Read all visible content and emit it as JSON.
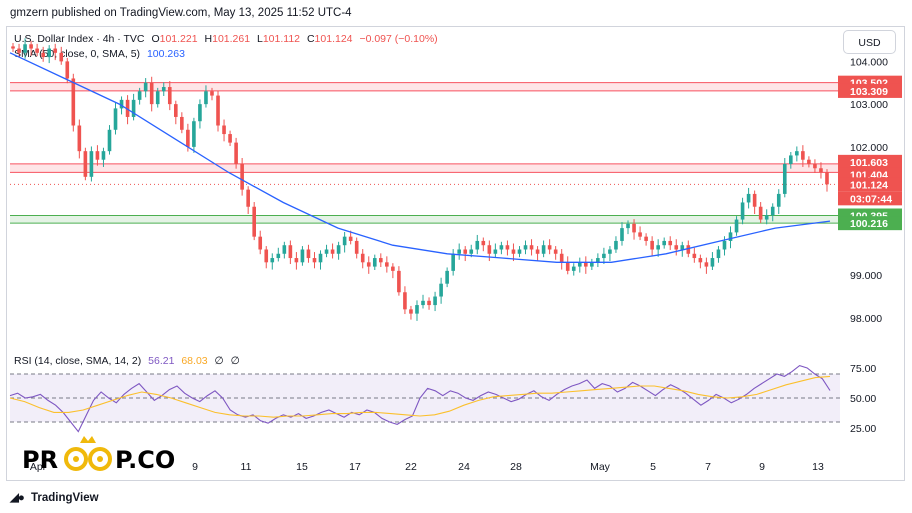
{
  "header": {
    "publisher_line": "gmzern published on TradingView.com, May 13, 2025 11:52 UTC-4"
  },
  "toolbar": {
    "currency_button": "USD"
  },
  "legend": {
    "symbol": "U.S. Dollar Index · 4h · TVC",
    "open_label": "O",
    "open": "101.221",
    "high_label": "H",
    "high": "101.261",
    "low_label": "L",
    "low": "101.112",
    "close_label": "C",
    "close": "101.124",
    "change": "−0.097 (−0.10%)",
    "sma_label": "SMA (50, close, 0, SMA, 5)",
    "sma_value": "100.263"
  },
  "rsi_legend": {
    "label": "RSI (14, close, SMA, 14, 2)",
    "rsi": "56.21",
    "rsi_sma": "68.03",
    "extra1": "∅",
    "extra2": "∅"
  },
  "watermark": {
    "text_left": "PR",
    "text_right": "P.CO"
  },
  "footer": {
    "brand": "TradingView"
  },
  "colors": {
    "up": "#26a69a",
    "down": "#ef5350",
    "sma": "#2962ff",
    "rsi": "#7e57c2",
    "rsi_sma": "#fbc02d",
    "resistance": "#f7525f",
    "support": "#4caf50",
    "rsi_band": "#7e57c2",
    "text": "#131722"
  },
  "chart_data": [
    {
      "type": "candlestick",
      "title": "U.S. Dollar Index · 4h · TVC",
      "x_ticks": [
        "Apr",
        "9",
        "11",
        "15",
        "17",
        "22",
        "24",
        "28",
        "May",
        "5",
        "7",
        "9",
        "13"
      ],
      "y_ticks": [
        "104.000",
        "103.000",
        "102.000",
        "99.000",
        "98.000"
      ],
      "ylim": [
        97.6,
        104.5
      ],
      "price_labels": [
        {
          "value": "103.502",
          "kind": "resistance"
        },
        {
          "value": "103.309",
          "kind": "resistance"
        },
        {
          "value": "101.603",
          "kind": "resistance"
        },
        {
          "value": "101.404",
          "kind": "resistance"
        },
        {
          "value": "101.124",
          "kind": "last"
        },
        {
          "value": "03:07:44",
          "kind": "countdown"
        },
        {
          "value": "100.395",
          "kind": "support"
        },
        {
          "value": "100.216",
          "kind": "support"
        }
      ],
      "zones": [
        {
          "name": "resistance-upper",
          "from": 103.309,
          "to": 103.502,
          "color": "#f7525f"
        },
        {
          "name": "resistance-lower",
          "from": 101.404,
          "to": 101.603,
          "color": "#f7525f"
        },
        {
          "name": "support",
          "from": 100.216,
          "to": 100.395,
          "color": "#4caf50"
        }
      ],
      "last_price": 101.124,
      "close_series": [
        104.3,
        104.2,
        104.4,
        104.3,
        104.2,
        104.1,
        104.3,
        104.2,
        104.0,
        103.6,
        102.5,
        101.9,
        101.3,
        101.9,
        101.7,
        101.9,
        102.4,
        102.9,
        103.1,
        102.7,
        103.1,
        103.3,
        103.5,
        103.0,
        103.3,
        103.4,
        103.0,
        102.7,
        102.4,
        102.0,
        102.6,
        103.0,
        103.3,
        103.2,
        102.5,
        102.3,
        102.1,
        101.6,
        101.0,
        100.6,
        99.9,
        99.6,
        99.3,
        99.4,
        99.5,
        99.7,
        99.4,
        99.3,
        99.6,
        99.4,
        99.3,
        99.5,
        99.6,
        99.5,
        99.7,
        99.9,
        99.8,
        99.5,
        99.3,
        99.2,
        99.4,
        99.3,
        99.2,
        99.1,
        98.6,
        98.2,
        98.1,
        98.3,
        98.4,
        98.3,
        98.5,
        98.8,
        99.1,
        99.5,
        99.6,
        99.5,
        99.6,
        99.8,
        99.7,
        99.5,
        99.6,
        99.7,
        99.6,
        99.5,
        99.6,
        99.7,
        99.6,
        99.5,
        99.7,
        99.6,
        99.5,
        99.3,
        99.1,
        99.2,
        99.3,
        99.2,
        99.3,
        99.4,
        99.5,
        99.6,
        99.8,
        100.1,
        100.2,
        100.0,
        99.9,
        99.8,
        99.6,
        99.7,
        99.8,
        99.7,
        99.6,
        99.7,
        99.5,
        99.4,
        99.3,
        99.2,
        99.4,
        99.6,
        99.8,
        100.0,
        100.3,
        100.7,
        100.9,
        100.6,
        100.3,
        100.4,
        100.6,
        100.9,
        101.6,
        101.8,
        101.9,
        101.7,
        101.6,
        101.5,
        101.4,
        101.124
      ],
      "sma_series": [
        104.2,
        103.6,
        103.0,
        102.2,
        101.4,
        100.7,
        100.1,
        99.7,
        99.5,
        99.4,
        99.3,
        99.3,
        99.5,
        99.8,
        100.1,
        100.263
      ]
    },
    {
      "type": "line",
      "title": "RSI (14, close, SMA, 14, 2)",
      "y_ticks": [
        "75.00",
        "50.00",
        "25.00"
      ],
      "ylim": [
        15,
        85
      ],
      "band": [
        30,
        70
      ],
      "series": [
        {
          "name": "RSI",
          "values": [
            52,
            54,
            50,
            51,
            53,
            48,
            44,
            38,
            30,
            22,
            35,
            48,
            55,
            50,
            46,
            53,
            58,
            62,
            55,
            48,
            52,
            57,
            60,
            54,
            50,
            47,
            52,
            56,
            50,
            40,
            36,
            34,
            36,
            31,
            29,
            33,
            36,
            34,
            37,
            33,
            35,
            38,
            40,
            37,
            34,
            38,
            36,
            40,
            38,
            33,
            30,
            28,
            32,
            35,
            50,
            58,
            56,
            52,
            56,
            54,
            50,
            48,
            52,
            55,
            53,
            50,
            47,
            49,
            53,
            56,
            51,
            48,
            53,
            57,
            60,
            62,
            65,
            58,
            62,
            60,
            55,
            58,
            63,
            60,
            56,
            52,
            57,
            61,
            58,
            54,
            49,
            44,
            48,
            53,
            50,
            46,
            49,
            53,
            58,
            62,
            66,
            70,
            68,
            72,
            77,
            75,
            70,
            66,
            56.21
          ]
        },
        {
          "name": "RSI SMA",
          "values": [
            50,
            47,
            42,
            38,
            38,
            40,
            44,
            48,
            52,
            55,
            53,
            50,
            46,
            42,
            38,
            36,
            35,
            35,
            34,
            35,
            35,
            36,
            37,
            37,
            38,
            38,
            37,
            36,
            35,
            36,
            39,
            44,
            48,
            51,
            52,
            53,
            54,
            54,
            55,
            56,
            57,
            58,
            59,
            60,
            60,
            58,
            56,
            53,
            51,
            50,
            51,
            53,
            57,
            61,
            64,
            67,
            68.03
          ]
        }
      ]
    }
  ]
}
